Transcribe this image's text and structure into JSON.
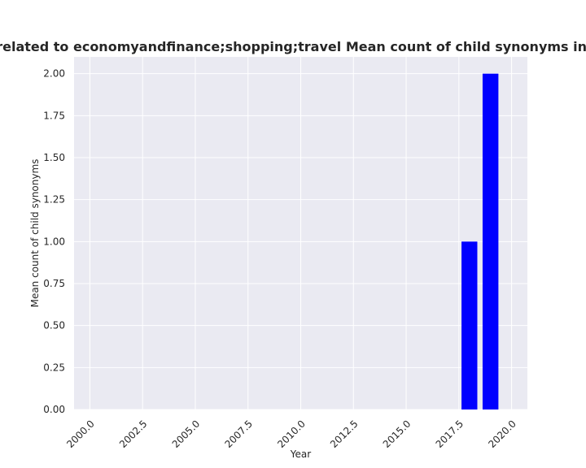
{
  "chart_data": {
    "type": "bar",
    "title": "Websites are related to economyandfinance;shopping;travel Mean count of child synonyms in privacy policies",
    "xlabel": "Year",
    "ylabel": "Mean count of child synonyms",
    "x": [
      2018,
      2019
    ],
    "values": [
      1.0,
      2.0
    ],
    "bar_color": "#0000ff",
    "xlim": [
      1999.25,
      2020.75
    ],
    "ylim": [
      0,
      2.1
    ],
    "xticks": [
      2000.0,
      2002.5,
      2005.0,
      2007.5,
      2010.0,
      2012.5,
      2015.0,
      2017.5,
      2020.0
    ],
    "xtick_labels": [
      "2000.0",
      "2002.5",
      "2005.0",
      "2007.5",
      "2010.0",
      "2012.5",
      "2015.0",
      "2017.5",
      "2020.0"
    ],
    "yticks": [
      0,
      0.25,
      0.5,
      0.75,
      1.0,
      1.25,
      1.5,
      1.75,
      2.0
    ],
    "ytick_labels": [
      "0.00",
      "0.25",
      "0.50",
      "0.75",
      "1.00",
      "1.25",
      "1.50",
      "1.75",
      "2.00"
    ],
    "grid": true,
    "background_color": "#eaeaf2",
    "grid_color": "#ffffff"
  }
}
